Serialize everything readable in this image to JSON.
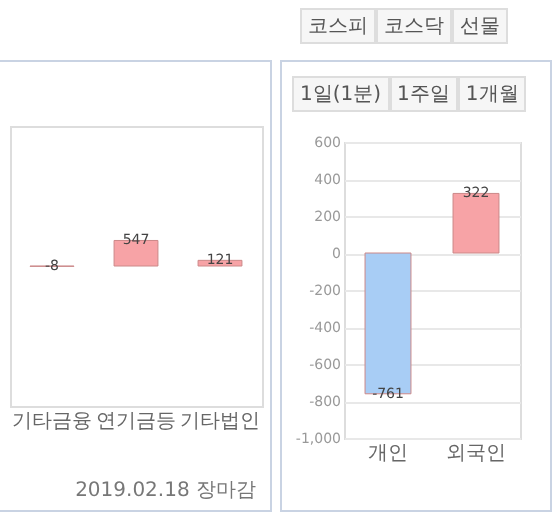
{
  "chart_data": [
    {
      "type": "bar",
      "categories": [
        "기타금융",
        "연기금등",
        "기타법인"
      ],
      "values": [
        -8,
        547,
        121
      ],
      "colors": [
        "#a8cdf5",
        "#f7a3a6",
        "#f7a3a6"
      ],
      "data_labels": true,
      "ylim": [
        -3000,
        3000
      ],
      "tick_labels": "x",
      "annotations": [
        "2019.02.18 장마감"
      ]
    },
    {
      "type": "bar",
      "categories": [
        "개인",
        "외국인"
      ],
      "values": [
        -761,
        322
      ],
      "colors": [
        "#a8cdf5",
        "#f7a3a6"
      ],
      "data_labels": true,
      "ylim": [
        -1000,
        600
      ],
      "yticks": [
        {
          "value": -1000,
          "label": "-1,000"
        },
        -800,
        -600,
        -400,
        -200,
        0,
        200,
        400,
        600
      ],
      "grid": "y",
      "annotations": [
        "코스피",
        "코스닥",
        "선물",
        "1일(1분)",
        "1주일",
        "1개월"
      ]
    }
  ]
}
